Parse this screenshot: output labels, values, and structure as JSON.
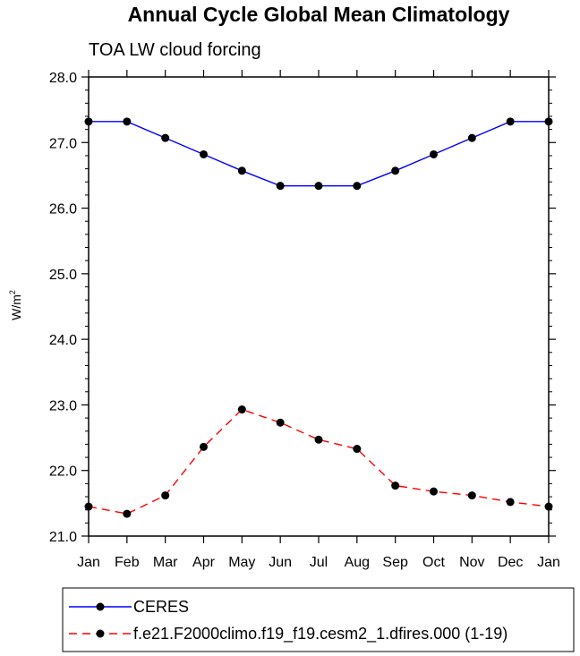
{
  "chart_data": {
    "type": "line",
    "title": "Annual Cycle Global Mean Climatology",
    "subtitle": "TOA LW cloud forcing",
    "ylabel_base": "W/m",
    "ylabel_sup": "2",
    "xlabel": "",
    "categories": [
      "Jan",
      "Feb",
      "Mar",
      "Apr",
      "May",
      "Jun",
      "Jul",
      "Aug",
      "Sep",
      "Oct",
      "Nov",
      "Dec",
      "Jan"
    ],
    "ylim": [
      21.0,
      28.0
    ],
    "yticks": [
      21.0,
      22.0,
      23.0,
      24.0,
      25.0,
      26.0,
      27.0,
      28.0
    ],
    "ytick_labels": [
      "21.0",
      "22.0",
      "23.0",
      "24.0",
      "25.0",
      "26.0",
      "27.0",
      "28.0"
    ],
    "grid": false,
    "legend_position": "bottom",
    "series": [
      {
        "name": "CERES",
        "color": "#0000ff",
        "dashed": false,
        "values": [
          27.32,
          27.32,
          27.07,
          26.82,
          26.57,
          26.34,
          26.34,
          26.34,
          26.57,
          26.82,
          27.07,
          27.32,
          27.32
        ]
      },
      {
        "name": "f.e21.F2000climo.f19_f19.cesm2_1.dfires.000 (1-19)",
        "color": "#ff0000",
        "dashed": true,
        "values": [
          21.45,
          21.34,
          21.62,
          22.36,
          22.93,
          22.73,
          22.47,
          22.33,
          21.77,
          21.68,
          21.62,
          21.52,
          21.45
        ]
      }
    ]
  }
}
